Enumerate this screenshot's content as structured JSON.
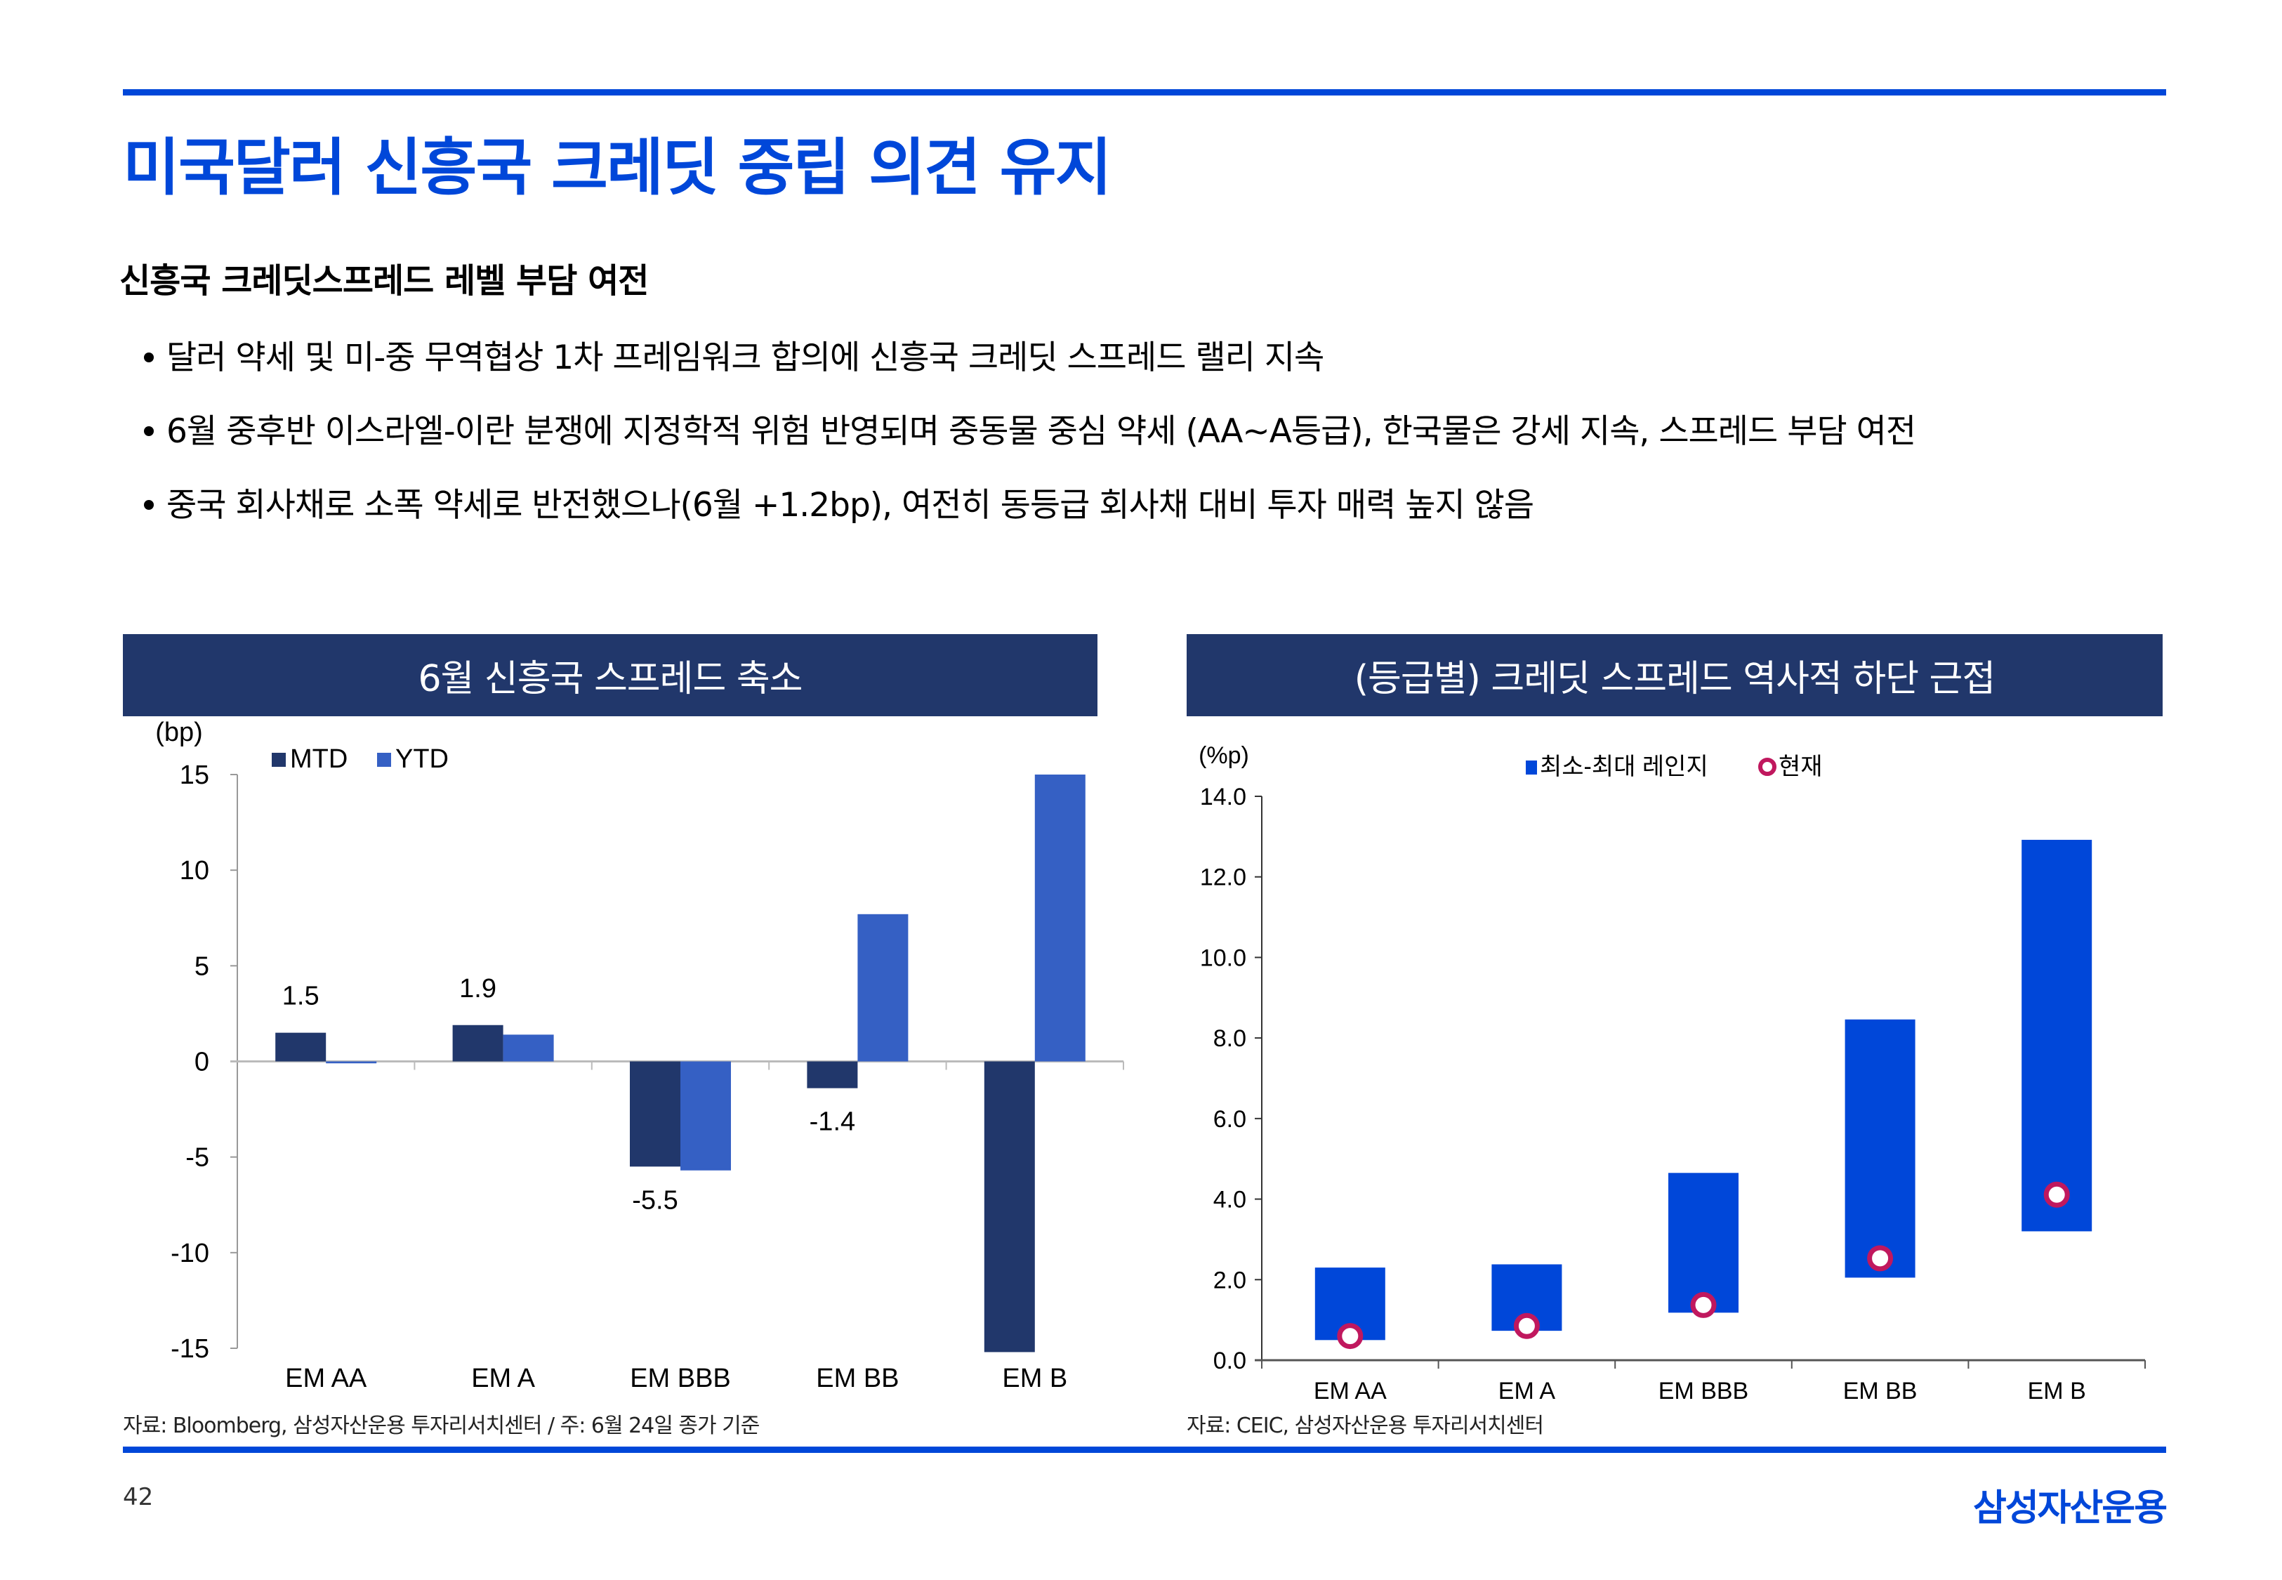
{
  "page": {
    "title": "미국달러 신흥국 크레딧 중립 의견 유지",
    "section_heading": "신흥국 크레딧스프레드 레벨 부담 여전",
    "bullets": [
      "달러 약세 및 미-중 무역협상 1차 프레임워크 합의에 신흥국 크레딧 스프레드 랠리 지속",
      "6월 중후반 이스라엘-이란 분쟁에 지정학적 위험 반영되며 중동물 중심 약세 (AA~A등급), 한국물은 강세 지속, 스프레드 부담 여전",
      "중국 회사채로 소폭 약세로 반전했으나(6월 +1.2bp), 여전히 동등급 회사채 대비 투자 매력 높지 않음"
    ],
    "page_number": "42",
    "logo_text": "삼성자산운용",
    "accent_color": "#0047D9",
    "header_bar_color": "#21376B"
  },
  "chart_data": [
    {
      "type": "bar",
      "title": "6월 신흥국 스프레드 축소",
      "ylabel": "(bp)",
      "xlabel": "",
      "categories": [
        "EM AA",
        "EM A",
        "EM BBB",
        "EM BB",
        "EM B"
      ],
      "series": [
        {
          "name": "MTD",
          "color": "#21376B",
          "values": [
            1.5,
            1.9,
            -5.5,
            -1.4,
            -15.2
          ]
        },
        {
          "name": "YTD",
          "color": "#3560C4",
          "values": [
            -0.1,
            1.4,
            -5.7,
            7.7,
            15.0
          ]
        }
      ],
      "data_labels": [
        {
          "series": "MTD",
          "category": "EM AA",
          "text": "1.5"
        },
        {
          "series": "MTD",
          "category": "EM A",
          "text": "1.9"
        },
        {
          "series": "MTD",
          "category": "EM BBB",
          "text": "-5.5"
        },
        {
          "series": "MTD",
          "category": "EM BB",
          "text": "-1.4"
        }
      ],
      "ylim": [
        -15,
        15
      ],
      "yticks": [
        15,
        10,
        5,
        0,
        -5,
        -10,
        -15
      ],
      "ytick_labels": [
        "15",
        "10",
        "5",
        "0",
        "-5",
        "-10",
        "-15"
      ],
      "legend": {
        "position": "top-left",
        "entries": [
          "MTD",
          "YTD"
        ]
      },
      "grid": false,
      "source": "자료: Bloomberg, 삼성자산운용 투자리서치센터 / 주: 6월 24일 종가 기준"
    },
    {
      "type": "bar",
      "title": "(등급별) 크레딧 스프레드 역사적 하단 근접",
      "ylabel": "(%p)",
      "xlabel": "",
      "categories": [
        "EM AA",
        "EM A",
        "EM BBB",
        "EM BB",
        "EM B"
      ],
      "series": [
        {
          "name": "최소-최대 레인지",
          "kind": "range",
          "color": "#0047D9",
          "min": [
            0.5,
            0.73,
            1.18,
            2.05,
            3.2
          ],
          "max": [
            2.3,
            2.38,
            4.65,
            8.46,
            12.92
          ]
        },
        {
          "name": "현재",
          "kind": "marker",
          "color": "#C0185E",
          "values": [
            0.6,
            0.85,
            1.37,
            2.53,
            4.11
          ]
        }
      ],
      "ylim": [
        0,
        14
      ],
      "yticks": [
        14,
        12,
        10,
        8,
        6,
        4,
        2,
        0
      ],
      "ytick_labels": [
        "14.0",
        "12.0",
        "10.0",
        "8.0",
        "6.0",
        "4.0",
        "2.0",
        "0.0"
      ],
      "legend": {
        "position": "top-center",
        "entries": [
          "최소-최대 레인지",
          "현재"
        ]
      },
      "grid": false,
      "source": "자료: CEIC, 삼성자산운용 투자리서치센터"
    }
  ]
}
